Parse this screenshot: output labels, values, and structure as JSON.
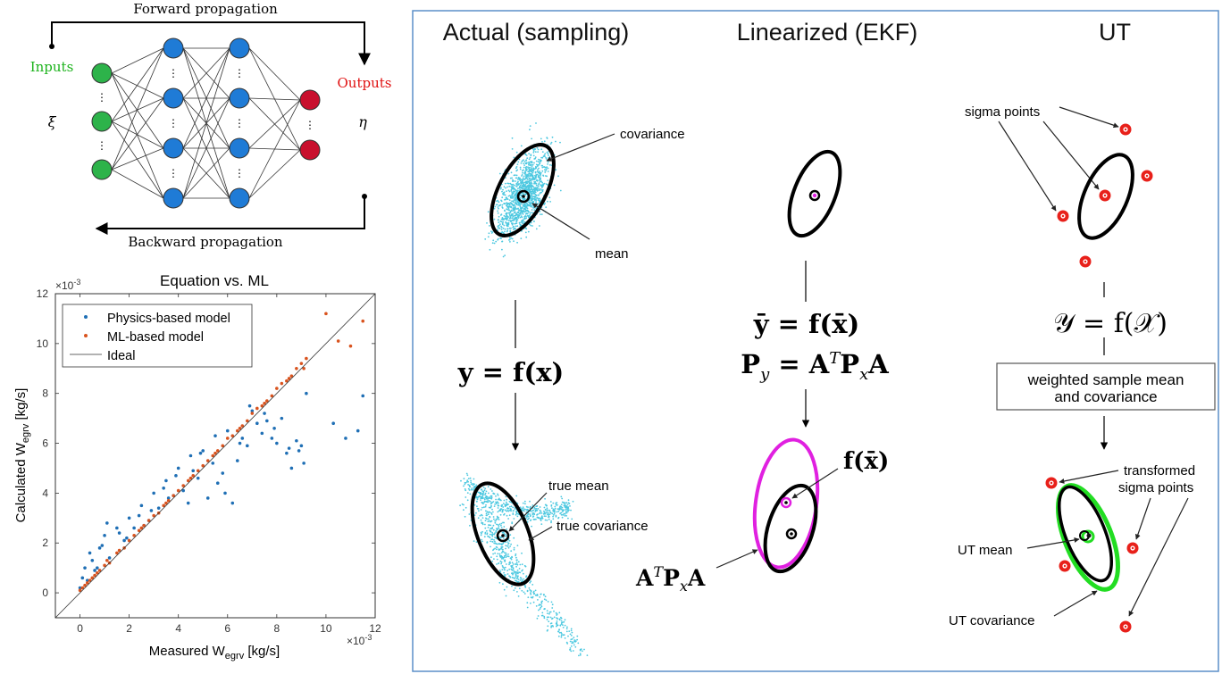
{
  "neural_net": {
    "forward_label": "Forward propagation",
    "backward_label": "Backward propagation",
    "inputs_label": "Inputs",
    "outputs_label": "Outputs",
    "xi_label": "ξ",
    "eta_label": "η",
    "colors": {
      "input": "#2db34a",
      "hidden": "#1f7bd6",
      "output": "#c8102e",
      "inputs_text": "#1db31d",
      "outputs_text": "#e01010"
    }
  },
  "scatter": {
    "title": "Equation vs. ML",
    "xlabel_main": "Measured  W",
    "xlabel_sub": "egrv",
    "xlabel_unit": " [kg/s]",
    "ylabel_main": "Calculated  W",
    "ylabel_sub": "egrv",
    "ylabel_unit": "  [kg/s]",
    "x_exponent": "×10",
    "x_exponent_power": "-3",
    "y_exponent": "×10",
    "y_exponent_power": "-3",
    "x_ticks": [
      "0",
      "2",
      "4",
      "6",
      "8",
      "10",
      "12"
    ],
    "y_ticks": [
      "0",
      "2",
      "4",
      "6",
      "8",
      "10",
      "12"
    ]
  },
  "chart_data": {
    "type": "scatter",
    "title": "Equation vs. ML",
    "xlabel": "Measured W_egrv [kg/s]",
    "ylabel": "Calculated W_egrv [kg/s]",
    "scale_note": "×10^-3",
    "xlim": [
      -1,
      12
    ],
    "ylim": [
      -1,
      12
    ],
    "grid": false,
    "legend_position": "top-left",
    "series": [
      {
        "name": "Physics-based model",
        "color": "#1f6fb5",
        "x": [
          0.0,
          0.1,
          0.2,
          0.3,
          0.5,
          0.6,
          0.8,
          1.0,
          1.2,
          1.5,
          1.8,
          2.0,
          2.2,
          2.5,
          2.8,
          3.0,
          3.2,
          3.5,
          3.8,
          4.0,
          4.2,
          4.5,
          4.8,
          5.0,
          5.2,
          5.5,
          5.8,
          6.0,
          6.2,
          6.5,
          6.8,
          7.0,
          7.2,
          7.5,
          7.8,
          8.0,
          8.2,
          8.5,
          8.8,
          9.0,
          9.2,
          10.3,
          10.8,
          11.3,
          11.5,
          0.4,
          1.1,
          2.4,
          3.4,
          4.4,
          5.4,
          6.4,
          7.4,
          8.4,
          9.1,
          0.7,
          1.6,
          2.6,
          3.6,
          4.6,
          5.6,
          6.6,
          7.6,
          8.6,
          0.9,
          1.9,
          2.9,
          3.9,
          4.9,
          5.9,
          6.9,
          7.9,
          8.9
        ],
        "y": [
          0.2,
          0.6,
          1.0,
          0.5,
          1.3,
          0.9,
          1.8,
          2.3,
          1.4,
          2.6,
          2.1,
          3.0,
          2.6,
          3.5,
          2.9,
          4.0,
          3.4,
          4.5,
          3.9,
          5.0,
          4.1,
          5.5,
          4.6,
          5.7,
          3.8,
          6.3,
          4.8,
          6.5,
          3.6,
          6.0,
          5.9,
          7.3,
          6.8,
          7.2,
          6.2,
          6.0,
          7.0,
          5.8,
          6.1,
          5.9,
          8.0,
          6.8,
          6.2,
          6.5,
          7.9,
          1.6,
          2.8,
          3.1,
          4.2,
          3.6,
          5.2,
          5.3,
          6.4,
          5.6,
          5.2,
          1.0,
          2.4,
          2.7,
          3.8,
          4.9,
          4.4,
          6.2,
          6.9,
          5.0,
          1.9,
          2.2,
          3.3,
          4.7,
          5.6,
          4.0,
          7.5,
          6.6,
          5.7
        ]
      },
      {
        "name": "ML-based model",
        "color": "#d9531e",
        "x": [
          0.0,
          0.1,
          0.2,
          0.3,
          0.5,
          0.6,
          0.8,
          1.0,
          1.2,
          1.5,
          1.8,
          2.0,
          2.2,
          2.5,
          2.8,
          3.0,
          3.2,
          3.5,
          3.8,
          4.0,
          4.2,
          4.5,
          4.8,
          5.0,
          5.2,
          5.5,
          5.8,
          6.0,
          6.2,
          6.5,
          6.8,
          7.0,
          7.2,
          7.5,
          7.8,
          8.0,
          8.2,
          8.5,
          8.8,
          9.0,
          9.2,
          10.0,
          10.5,
          11.0,
          11.5,
          0.4,
          1.1,
          2.4,
          3.4,
          4.4,
          5.4,
          6.4,
          7.4,
          8.4,
          9.1,
          0.7,
          1.6,
          2.6,
          3.6,
          4.6,
          5.6,
          6.6,
          7.6,
          8.6
        ],
        "y": [
          0.1,
          0.2,
          0.3,
          0.4,
          0.6,
          0.7,
          0.9,
          1.1,
          1.2,
          1.6,
          1.8,
          2.1,
          2.3,
          2.6,
          2.9,
          3.1,
          3.2,
          3.6,
          3.9,
          4.1,
          4.3,
          4.6,
          4.9,
          5.1,
          5.3,
          5.6,
          5.9,
          6.2,
          6.3,
          6.6,
          6.9,
          7.2,
          7.4,
          7.6,
          7.9,
          8.2,
          8.4,
          8.6,
          9.0,
          9.2,
          9.4,
          11.2,
          10.1,
          9.9,
          10.9,
          0.5,
          1.3,
          2.5,
          3.5,
          4.5,
          5.5,
          6.5,
          7.5,
          8.5,
          9.0,
          0.8,
          1.7,
          2.7,
          3.7,
          4.7,
          5.7,
          6.7,
          7.7,
          8.7
        ]
      },
      {
        "name": "Ideal",
        "color": "#333333",
        "x": [
          -1,
          12
        ],
        "y": [
          -1,
          12
        ]
      }
    ]
  },
  "ukf": {
    "col_actual": "Actual (sampling)",
    "col_ekf": "Linearized (EKF)",
    "col_ut": "UT",
    "covariance": "covariance",
    "mean": "mean",
    "true_mean": "true mean",
    "true_covariance": "true covariance",
    "sigma_points": "sigma points",
    "transformed_line1": "transformed",
    "transformed_line2": "sigma points",
    "ut_mean": "UT mean",
    "ut_covariance": "UT covariance",
    "weighted_line1": "weighted sample mean",
    "weighted_line2": "and covariance",
    "eq_actual": "y = f(x)",
    "eq_ekf1": "ȳ = f(x̄)",
    "eq_ekf2_main": "P",
    "eq_ekf2_sub": "y",
    "eq_ekf2_rest": " = A",
    "eq_ekf2_sup": "T",
    "eq_ekf2_rest2": "P",
    "eq_ekf2_sub2": "x",
    "eq_ekf2_end": "A",
    "eq_ut": "𝒴 = f(𝒳)",
    "fxbar": "f(x̄)",
    "atpxa_main": "A",
    "atpxa_sup": "T",
    "atpxa_p": "P",
    "atpxa_sub": "x",
    "atpxa_end": "A",
    "colors": {
      "frame": "#5b8fc9",
      "cloud": "#4cc8e0",
      "magenta": "#e020e0",
      "sigma": "#e8201a",
      "green": "#22dd22"
    }
  }
}
